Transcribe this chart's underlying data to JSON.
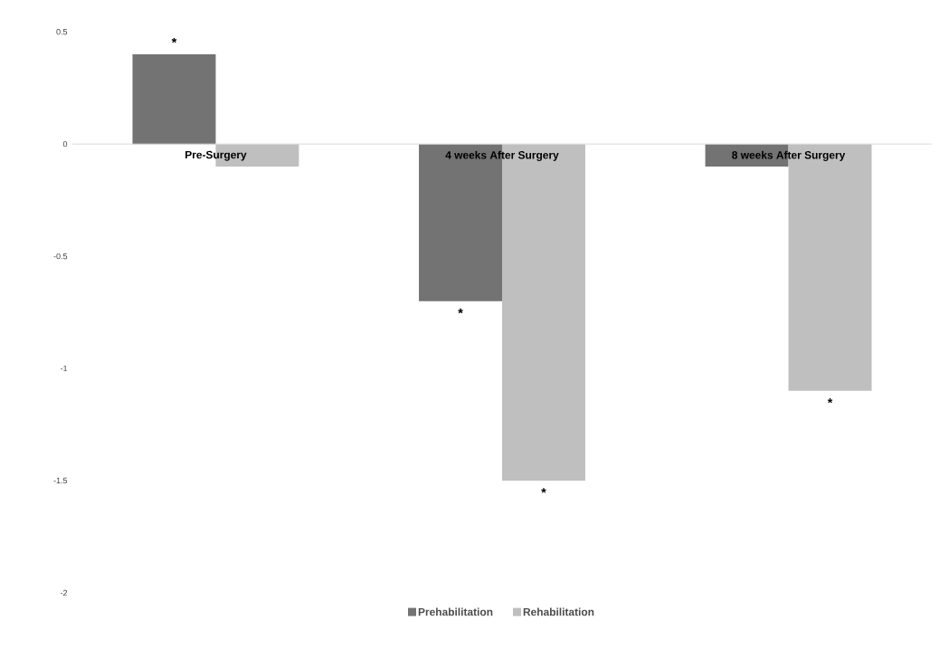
{
  "chart_data": {
    "type": "bar",
    "categories": [
      "Pre-Surgery",
      "4 weeks After Surgery",
      "8 weeks After Surgery"
    ],
    "series": [
      {
        "name": "Prehabilitation",
        "color": "#737373",
        "values": [
          0.4,
          -0.7,
          -0.1
        ],
        "value_labels": [
          "*",
          "*",
          null
        ]
      },
      {
        "name": "Rehabilitation",
        "color": "#bfbfbf",
        "values": [
          -0.1,
          -1.5,
          -1.1
        ],
        "value_labels": [
          null,
          "*",
          "*"
        ]
      }
    ],
    "ylim": [
      -2,
      0.5
    ],
    "yticks": [
      0.5,
      0,
      -0.5,
      -1,
      -1.5,
      -2
    ],
    "grid": false,
    "legend": "bottom"
  }
}
